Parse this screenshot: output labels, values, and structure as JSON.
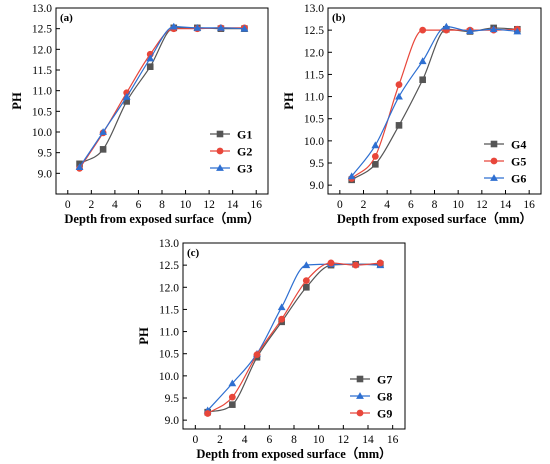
{
  "chart_data": [
    {
      "type": "line",
      "panel_label": "(a)",
      "xlabel": "Depth from exposed surface（mm）",
      "ylabel": "PH",
      "xlim": [
        -1,
        17
      ],
      "ylim": [
        8.5,
        13.0
      ],
      "xticks": [
        0,
        2,
        4,
        6,
        8,
        10,
        12,
        14,
        16
      ],
      "yticks": [
        9.0,
        9.5,
        10.0,
        10.5,
        11.0,
        11.5,
        12.0,
        12.5,
        13.0
      ],
      "legend_position": "bottom-right",
      "series": [
        {
          "name": "G1",
          "marker": "square",
          "color": "#555555",
          "x": [
            1,
            3,
            5,
            7,
            9,
            11,
            13,
            15
          ],
          "y": [
            9.23,
            9.58,
            10.74,
            11.58,
            12.52,
            12.52,
            12.5,
            12.5
          ]
        },
        {
          "name": "G2",
          "marker": "circle",
          "color": "#e8463a",
          "x": [
            1,
            3,
            5,
            7,
            9,
            11,
            13,
            15
          ],
          "y": [
            9.12,
            9.98,
            10.95,
            11.88,
            12.5,
            12.5,
            12.52,
            12.52
          ]
        },
        {
          "name": "G3",
          "marker": "triangle",
          "color": "#2e6fd1",
          "x": [
            1,
            3,
            5,
            7,
            9,
            11,
            13,
            15
          ],
          "y": [
            9.15,
            10.0,
            10.85,
            11.78,
            12.55,
            12.52,
            12.52,
            12.5
          ]
        }
      ]
    },
    {
      "type": "line",
      "panel_label": "(b)",
      "xlabel": "Depth from exposed surface（mm）",
      "ylabel": "PH",
      "xlim": [
        -1,
        17
      ],
      "ylim": [
        8.8,
        13.0
      ],
      "xticks": [
        0,
        2,
        4,
        6,
        8,
        10,
        12,
        14,
        16
      ],
      "yticks": [
        9.0,
        9.5,
        10.0,
        10.5,
        11.0,
        11.5,
        12.0,
        12.5,
        13.0
      ],
      "legend_position": "bottom-right",
      "series": [
        {
          "name": "G4",
          "marker": "square",
          "color": "#555555",
          "x": [
            1,
            3,
            5,
            7,
            9,
            11,
            13,
            15
          ],
          "y": [
            9.12,
            9.47,
            10.35,
            11.38,
            12.52,
            12.47,
            12.55,
            12.52
          ]
        },
        {
          "name": "G5",
          "marker": "circle",
          "color": "#e8463a",
          "x": [
            1,
            3,
            5,
            7,
            9,
            11,
            13,
            15
          ],
          "y": [
            9.15,
            9.65,
            11.27,
            12.5,
            12.5,
            12.5,
            12.5,
            12.52
          ]
        },
        {
          "name": "G6",
          "marker": "triangle",
          "color": "#2e6fd1",
          "x": [
            1,
            3,
            5,
            7,
            9,
            11,
            13,
            15
          ],
          "y": [
            9.2,
            9.9,
            11.0,
            11.8,
            12.58,
            12.48,
            12.52,
            12.47
          ]
        }
      ]
    },
    {
      "type": "line",
      "panel_label": "(c)",
      "xlabel": "Depth from exposed surface（mm）",
      "ylabel": "PH",
      "xlim": [
        -1,
        17
      ],
      "ylim": [
        8.8,
        13.0
      ],
      "xticks": [
        0,
        2,
        4,
        6,
        8,
        10,
        12,
        14,
        16
      ],
      "yticks": [
        9.0,
        9.5,
        10.0,
        10.5,
        11.0,
        11.5,
        12.0,
        12.5,
        13.0
      ],
      "legend_position": "bottom-right",
      "series": [
        {
          "name": "G7",
          "marker": "square",
          "color": "#555555",
          "x": [
            1,
            3,
            5,
            7,
            9,
            11,
            13,
            15
          ],
          "y": [
            9.18,
            9.35,
            10.42,
            11.22,
            12.0,
            12.5,
            12.52,
            12.52
          ]
        },
        {
          "name": "G8",
          "marker": "triangle",
          "color": "#2e6fd1",
          "x": [
            1,
            3,
            5,
            7,
            9,
            11,
            13,
            15
          ],
          "y": [
            9.22,
            9.83,
            10.5,
            11.55,
            12.5,
            12.52,
            12.52,
            12.5
          ]
        },
        {
          "name": "G9",
          "marker": "circle",
          "color": "#e8463a",
          "x": [
            1,
            3,
            5,
            7,
            9,
            11,
            13,
            15
          ],
          "y": [
            9.15,
            9.52,
            10.48,
            11.28,
            12.15,
            12.55,
            12.5,
            12.55
          ]
        }
      ]
    }
  ]
}
